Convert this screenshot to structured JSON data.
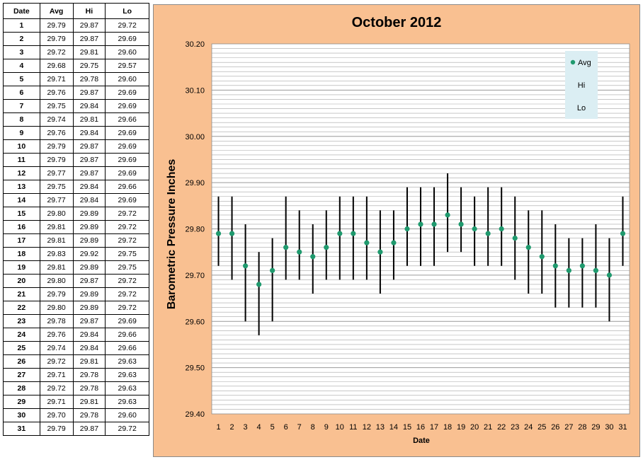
{
  "table": {
    "headers": [
      "Date",
      "Avg",
      "Hi",
      "Lo"
    ],
    "rows": [
      [
        "1",
        "29.79",
        "29.87",
        "29.72"
      ],
      [
        "2",
        "29.79",
        "29.87",
        "29.69"
      ],
      [
        "3",
        "29.72",
        "29.81",
        "29.60"
      ],
      [
        "4",
        "29.68",
        "29.75",
        "29.57"
      ],
      [
        "5",
        "29.71",
        "29.78",
        "29.60"
      ],
      [
        "6",
        "29.76",
        "29.87",
        "29.69"
      ],
      [
        "7",
        "29.75",
        "29.84",
        "29.69"
      ],
      [
        "8",
        "29.74",
        "29.81",
        "29.66"
      ],
      [
        "9",
        "29.76",
        "29.84",
        "29.69"
      ],
      [
        "10",
        "29.79",
        "29.87",
        "29.69"
      ],
      [
        "11",
        "29.79",
        "29.87",
        "29.69"
      ],
      [
        "12",
        "29.77",
        "29.87",
        "29.69"
      ],
      [
        "13",
        "29.75",
        "29.84",
        "29.66"
      ],
      [
        "14",
        "29.77",
        "29.84",
        "29.69"
      ],
      [
        "15",
        "29.80",
        "29.89",
        "29.72"
      ],
      [
        "16",
        "29.81",
        "29.89",
        "29.72"
      ],
      [
        "17",
        "29.81",
        "29.89",
        "29.72"
      ],
      [
        "18",
        "29.83",
        "29.92",
        "29.75"
      ],
      [
        "19",
        "29.81",
        "29.89",
        "29.75"
      ],
      [
        "20",
        "29.80",
        "29.87",
        "29.72"
      ],
      [
        "21",
        "29.79",
        "29.89",
        "29.72"
      ],
      [
        "22",
        "29.80",
        "29.89",
        "29.72"
      ],
      [
        "23",
        "29.78",
        "29.87",
        "29.69"
      ],
      [
        "24",
        "29.76",
        "29.84",
        "29.66"
      ],
      [
        "25",
        "29.74",
        "29.84",
        "29.66"
      ],
      [
        "26",
        "29.72",
        "29.81",
        "29.63"
      ],
      [
        "27",
        "29.71",
        "29.78",
        "29.63"
      ],
      [
        "28",
        "29.72",
        "29.78",
        "29.63"
      ],
      [
        "29",
        "29.71",
        "29.81",
        "29.63"
      ],
      [
        "30",
        "29.70",
        "29.78",
        "29.60"
      ],
      [
        "31",
        "29.79",
        "29.87",
        "29.72"
      ]
    ]
  },
  "chart_data": {
    "type": "scatter",
    "title": "October 2012",
    "xlabel": "Date",
    "ylabel": "Barometric Pressure Inches",
    "x": [
      1,
      2,
      3,
      4,
      5,
      6,
      7,
      8,
      9,
      10,
      11,
      12,
      13,
      14,
      15,
      16,
      17,
      18,
      19,
      20,
      21,
      22,
      23,
      24,
      25,
      26,
      27,
      28,
      29,
      30,
      31
    ],
    "series": [
      {
        "name": "Avg",
        "values": [
          29.79,
          29.79,
          29.72,
          29.68,
          29.71,
          29.76,
          29.75,
          29.74,
          29.76,
          29.79,
          29.79,
          29.77,
          29.75,
          29.77,
          29.8,
          29.81,
          29.81,
          29.83,
          29.81,
          29.8,
          29.79,
          29.8,
          29.78,
          29.76,
          29.74,
          29.72,
          29.71,
          29.72,
          29.71,
          29.7,
          29.79
        ]
      },
      {
        "name": "Hi",
        "values": [
          29.87,
          29.87,
          29.81,
          29.75,
          29.78,
          29.87,
          29.84,
          29.81,
          29.84,
          29.87,
          29.87,
          29.87,
          29.84,
          29.84,
          29.89,
          29.89,
          29.89,
          29.92,
          29.89,
          29.87,
          29.89,
          29.89,
          29.87,
          29.84,
          29.84,
          29.81,
          29.78,
          29.78,
          29.81,
          29.78,
          29.87
        ]
      },
      {
        "name": "Lo",
        "values": [
          29.72,
          29.69,
          29.6,
          29.57,
          29.6,
          29.69,
          29.69,
          29.66,
          29.69,
          29.69,
          29.69,
          29.69,
          29.66,
          29.69,
          29.72,
          29.72,
          29.72,
          29.75,
          29.75,
          29.72,
          29.72,
          29.72,
          29.69,
          29.66,
          29.66,
          29.63,
          29.63,
          29.63,
          29.63,
          29.6,
          29.72
        ]
      }
    ],
    "ylim": [
      29.4,
      30.2
    ],
    "yticks": [
      "29.40",
      "29.50",
      "29.60",
      "29.70",
      "29.80",
      "29.90",
      "30.00",
      "30.10",
      "30.20"
    ],
    "legend": {
      "position": "top-right",
      "items": [
        "Avg",
        "Hi",
        "Lo"
      ]
    },
    "colors": {
      "avg_marker": "#1f9a6e",
      "range_line": "#000000",
      "background": "#f9c091",
      "legend_bg": "#dbeef3"
    },
    "grid": true
  }
}
